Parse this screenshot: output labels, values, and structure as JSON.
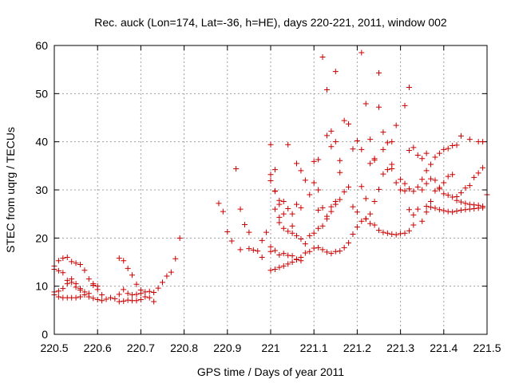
{
  "chart_data": {
    "type": "scatter",
    "title": "Rec. auck (Lon=174, Lat=-36, h=HE), days 220-221, 2011, window 002",
    "xlabel": "GPS time / Days of year 2011",
    "ylabel": "STEC from uqrg / TECUs",
    "xlim": [
      220.5,
      221.5
    ],
    "ylim": [
      0,
      60
    ],
    "x_ticks": [
      "220.5",
      "220.6",
      "220.7",
      "220.8",
      "220.9",
      "221",
      "221.1",
      "221.2",
      "221.3",
      "221.4",
      "221.5"
    ],
    "y_ticks": [
      "0",
      "10",
      "20",
      "30",
      "40",
      "50",
      "60"
    ],
    "grid": true,
    "marker": "+",
    "color": "#cc0000",
    "points": [
      [
        220.5,
        14.2
      ],
      [
        220.51,
        15.3
      ],
      [
        220.52,
        15.8
      ],
      [
        220.53,
        16.0
      ],
      [
        220.54,
        15.1
      ],
      [
        220.55,
        14.8
      ],
      [
        220.56,
        14.5
      ],
      [
        220.57,
        13.3
      ],
      [
        220.58,
        11.5
      ],
      [
        220.59,
        10.5
      ],
      [
        220.6,
        9.3
      ],
      [
        220.5,
        13.5
      ],
      [
        220.51,
        13.2
      ],
      [
        220.52,
        12.8
      ],
      [
        220.53,
        11.2
      ],
      [
        220.54,
        11.5
      ],
      [
        220.55,
        10.5
      ],
      [
        220.56,
        9.5
      ],
      [
        220.57,
        8.8
      ],
      [
        220.58,
        8.5
      ],
      [
        220.59,
        10.2
      ],
      [
        220.6,
        10.0
      ],
      [
        220.61,
        8.2
      ],
      [
        220.5,
        8.8
      ],
      [
        220.51,
        9.0
      ],
      [
        220.52,
        9.5
      ],
      [
        220.53,
        10.5
      ],
      [
        220.54,
        10.8
      ],
      [
        220.55,
        9.8
      ],
      [
        220.56,
        9.2
      ],
      [
        220.5,
        8.2
      ],
      [
        220.51,
        7.8
      ],
      [
        220.52,
        7.6
      ],
      [
        220.53,
        7.6
      ],
      [
        220.54,
        7.6
      ],
      [
        220.55,
        7.6
      ],
      [
        220.56,
        7.8
      ],
      [
        220.57,
        8.2
      ],
      [
        220.58,
        7.8
      ],
      [
        220.59,
        7.5
      ],
      [
        220.6,
        7.2
      ],
      [
        220.61,
        7.0
      ],
      [
        220.62,
        7.3
      ],
      [
        220.63,
        7.6
      ],
      [
        220.64,
        7.4
      ],
      [
        220.65,
        15.8
      ],
      [
        220.66,
        15.3
      ],
      [
        220.67,
        13.7
      ],
      [
        220.68,
        12.3
      ],
      [
        220.69,
        10.4
      ],
      [
        220.7,
        9.2
      ],
      [
        220.71,
        8.8
      ],
      [
        220.72,
        8.9
      ],
      [
        220.73,
        8.7
      ],
      [
        220.74,
        9.6
      ],
      [
        220.75,
        10.8
      ],
      [
        220.76,
        12.1
      ],
      [
        220.77,
        12.9
      ],
      [
        220.78,
        15.7
      ],
      [
        220.79,
        20.0
      ],
      [
        220.65,
        8.3
      ],
      [
        220.66,
        9.3
      ],
      [
        220.67,
        8.5
      ],
      [
        220.68,
        8.2
      ],
      [
        220.69,
        8.3
      ],
      [
        220.7,
        8.5
      ],
      [
        220.72,
        7.6
      ],
      [
        220.73,
        6.8
      ],
      [
        220.65,
        6.8
      ],
      [
        220.66,
        6.9
      ],
      [
        220.67,
        7.1
      ],
      [
        220.68,
        7.0
      ],
      [
        220.69,
        7.0
      ],
      [
        220.7,
        7.2
      ],
      [
        220.71,
        7.8
      ],
      [
        220.88,
        27.2
      ],
      [
        220.89,
        25.5
      ],
      [
        220.9,
        21.3
      ],
      [
        220.91,
        19.4
      ],
      [
        220.92,
        34.4
      ],
      [
        220.93,
        26.0
      ],
      [
        220.94,
        22.8
      ],
      [
        220.95,
        21.2
      ],
      [
        220.96,
        17.5
      ],
      [
        220.97,
        17.3
      ],
      [
        220.98,
        19.5
      ],
      [
        220.99,
        21.2
      ],
      [
        221.0,
        18.2
      ],
      [
        220.93,
        17.6
      ],
      [
        220.95,
        17.8
      ],
      [
        220.98,
        16.0
      ],
      [
        221.0,
        39.4
      ],
      [
        221.0,
        33.2
      ],
      [
        221.0,
        31.9
      ],
      [
        221.01,
        34.2
      ],
      [
        221.01,
        29.8
      ],
      [
        221.01,
        29.7
      ],
      [
        221.01,
        26.0
      ],
      [
        221.02,
        27.8
      ],
      [
        221.02,
        27.0
      ],
      [
        221.02,
        24.3
      ],
      [
        221.03,
        25.0
      ],
      [
        221.03,
        27.6
      ],
      [
        221.04,
        39.4
      ],
      [
        221.04,
        26.1
      ],
      [
        221.05,
        25.0
      ],
      [
        221.05,
        22.5
      ],
      [
        221.06,
        35.5
      ],
      [
        221.06,
        27.0
      ],
      [
        221.07,
        34.0
      ],
      [
        221.07,
        26.3
      ],
      [
        221.0,
        17.2
      ],
      [
        221.01,
        17.4
      ],
      [
        221.02,
        16.5
      ],
      [
        221.03,
        16.8
      ],
      [
        221.04,
        16.4
      ],
      [
        221.05,
        16.3
      ],
      [
        221.06,
        15.5
      ],
      [
        221.07,
        15.3
      ],
      [
        221.08,
        16.9
      ],
      [
        221.0,
        13.3
      ],
      [
        221.01,
        13.5
      ],
      [
        221.02,
        13.9
      ],
      [
        221.03,
        14.2
      ],
      [
        221.04,
        14.6
      ],
      [
        221.05,
        15.0
      ],
      [
        221.06,
        15.6
      ],
      [
        221.07,
        16.0
      ],
      [
        221.02,
        23.2
      ],
      [
        221.03,
        22.0
      ],
      [
        221.04,
        21.4
      ],
      [
        221.05,
        21.0
      ],
      [
        221.06,
        20.5
      ],
      [
        221.07,
        19.8
      ],
      [
        221.08,
        18.8
      ],
      [
        221.09,
        20.5
      ],
      [
        221.1,
        21.0
      ],
      [
        221.11,
        22.0
      ],
      [
        221.12,
        22.5
      ],
      [
        221.13,
        24.0
      ],
      [
        221.14,
        25.5
      ],
      [
        221.15,
        27.0
      ],
      [
        221.08,
        32.0
      ],
      [
        221.09,
        29.0
      ],
      [
        221.1,
        31.5
      ],
      [
        221.1,
        35.9
      ],
      [
        221.11,
        36.3
      ],
      [
        221.11,
        30.0
      ],
      [
        221.12,
        57.6
      ],
      [
        221.13,
        50.8
      ],
      [
        221.13,
        41.3
      ],
      [
        221.14,
        42.2
      ],
      [
        221.14,
        39.0
      ],
      [
        221.15,
        54.6
      ],
      [
        221.15,
        40.0
      ],
      [
        221.16,
        36.1
      ],
      [
        221.09,
        17.2
      ],
      [
        221.1,
        17.9
      ],
      [
        221.11,
        18.0
      ],
      [
        221.12,
        17.6
      ],
      [
        221.13,
        17.1
      ],
      [
        221.14,
        16.8
      ],
      [
        221.15,
        17.2
      ],
      [
        221.16,
        17.3
      ],
      [
        221.17,
        18.0
      ],
      [
        221.18,
        19.0
      ],
      [
        221.19,
        20.8
      ],
      [
        221.2,
        22.3
      ],
      [
        221.21,
        23.5
      ],
      [
        221.22,
        24.0
      ],
      [
        221.11,
        25.8
      ],
      [
        221.12,
        26.3
      ],
      [
        221.13,
        24.5
      ],
      [
        221.14,
        26.5
      ],
      [
        221.15,
        27.6
      ],
      [
        221.16,
        28.0
      ],
      [
        221.17,
        29.6
      ],
      [
        221.18,
        30.6
      ],
      [
        221.19,
        26.5
      ],
      [
        221.2,
        25.4
      ],
      [
        221.16,
        33.6
      ],
      [
        221.17,
        44.4
      ],
      [
        221.18,
        43.7
      ],
      [
        221.19,
        38.5
      ],
      [
        221.2,
        40.2
      ],
      [
        221.21,
        58.5
      ],
      [
        221.21,
        38.4
      ],
      [
        221.22,
        47.9
      ],
      [
        221.23,
        40.5
      ],
      [
        221.23,
        35.5
      ],
      [
        221.24,
        36.5
      ],
      [
        221.24,
        36.2
      ],
      [
        221.25,
        54.3
      ],
      [
        221.25,
        47.2
      ],
      [
        221.21,
        30.7
      ],
      [
        221.22,
        28.2
      ],
      [
        221.23,
        25.0
      ],
      [
        221.24,
        27.6
      ],
      [
        221.25,
        30.1
      ],
      [
        221.26,
        33.3
      ],
      [
        221.27,
        34.2
      ],
      [
        221.28,
        35.3
      ],
      [
        221.29,
        31.5
      ],
      [
        221.3,
        30.0
      ],
      [
        221.31,
        29.8
      ],
      [
        221.32,
        30.2
      ],
      [
        221.33,
        29.7
      ],
      [
        221.22,
        24.0
      ],
      [
        221.23,
        23.0
      ],
      [
        221.24,
        22.7
      ],
      [
        221.25,
        21.6
      ],
      [
        221.26,
        21.2
      ],
      [
        221.27,
        21.0
      ],
      [
        221.28,
        20.8
      ],
      [
        221.29,
        20.7
      ],
      [
        221.3,
        20.9
      ],
      [
        221.31,
        21.0
      ],
      [
        221.32,
        21.5
      ],
      [
        221.33,
        22.7
      ],
      [
        221.26,
        42.0
      ],
      [
        221.26,
        38.4
      ],
      [
        221.27,
        39.8
      ],
      [
        221.28,
        40.0
      ],
      [
        221.28,
        34.4
      ],
      [
        221.29,
        43.4
      ],
      [
        221.3,
        32.2
      ],
      [
        221.31,
        47.5
      ],
      [
        221.31,
        31.3
      ],
      [
        221.32,
        51.3
      ],
      [
        221.32,
        38.2
      ],
      [
        221.33,
        38.8
      ],
      [
        221.34,
        37.2
      ],
      [
        221.35,
        36.5
      ],
      [
        221.36,
        37.6
      ],
      [
        221.32,
        25.9
      ],
      [
        221.33,
        24.8
      ],
      [
        221.34,
        26.0
      ],
      [
        221.35,
        23.5
      ],
      [
        221.36,
        25.4
      ],
      [
        221.37,
        27.6
      ],
      [
        221.38,
        29.8
      ],
      [
        221.39,
        30.5
      ],
      [
        221.4,
        31.5
      ],
      [
        221.41,
        32.8
      ],
      [
        221.42,
        33.2
      ],
      [
        221.34,
        30.6
      ],
      [
        221.35,
        32.2
      ],
      [
        221.36,
        34.0
      ],
      [
        221.37,
        35.3
      ],
      [
        221.38,
        36.8
      ],
      [
        221.39,
        37.6
      ],
      [
        221.4,
        38.4
      ],
      [
        221.41,
        38.6
      ],
      [
        221.42,
        39.2
      ],
      [
        221.43,
        39.3
      ],
      [
        221.44,
        41.2
      ],
      [
        221.46,
        40.5
      ],
      [
        221.48,
        40.0
      ],
      [
        221.49,
        40.0
      ],
      [
        221.35,
        30.0
      ],
      [
        221.36,
        31.3
      ],
      [
        221.37,
        32.3
      ],
      [
        221.38,
        32.0
      ],
      [
        221.39,
        30.2
      ],
      [
        221.4,
        29.2
      ],
      [
        221.41,
        28.9
      ],
      [
        221.42,
        28.5
      ],
      [
        221.43,
        27.8
      ],
      [
        221.44,
        27.5
      ],
      [
        221.45,
        27.2
      ],
      [
        221.46,
        27.0
      ],
      [
        221.47,
        26.9
      ],
      [
        221.48,
        26.8
      ],
      [
        221.49,
        26.6
      ],
      [
        221.36,
        26.6
      ],
      [
        221.37,
        26.4
      ],
      [
        221.38,
        26.2
      ],
      [
        221.39,
        25.9
      ],
      [
        221.4,
        25.7
      ],
      [
        221.41,
        25.5
      ],
      [
        221.42,
        25.4
      ],
      [
        221.43,
        25.6
      ],
      [
        221.44,
        25.8
      ],
      [
        221.45,
        25.9
      ],
      [
        221.46,
        26.0
      ],
      [
        221.47,
        26.1
      ],
      [
        221.48,
        26.2
      ],
      [
        221.49,
        26.3
      ],
      [
        221.43,
        28.6
      ],
      [
        221.44,
        29.4
      ],
      [
        221.45,
        30.4
      ],
      [
        221.46,
        30.9
      ],
      [
        221.47,
        32.6
      ],
      [
        221.48,
        33.5
      ],
      [
        221.49,
        34.6
      ],
      [
        221.5,
        29.0
      ]
    ]
  }
}
